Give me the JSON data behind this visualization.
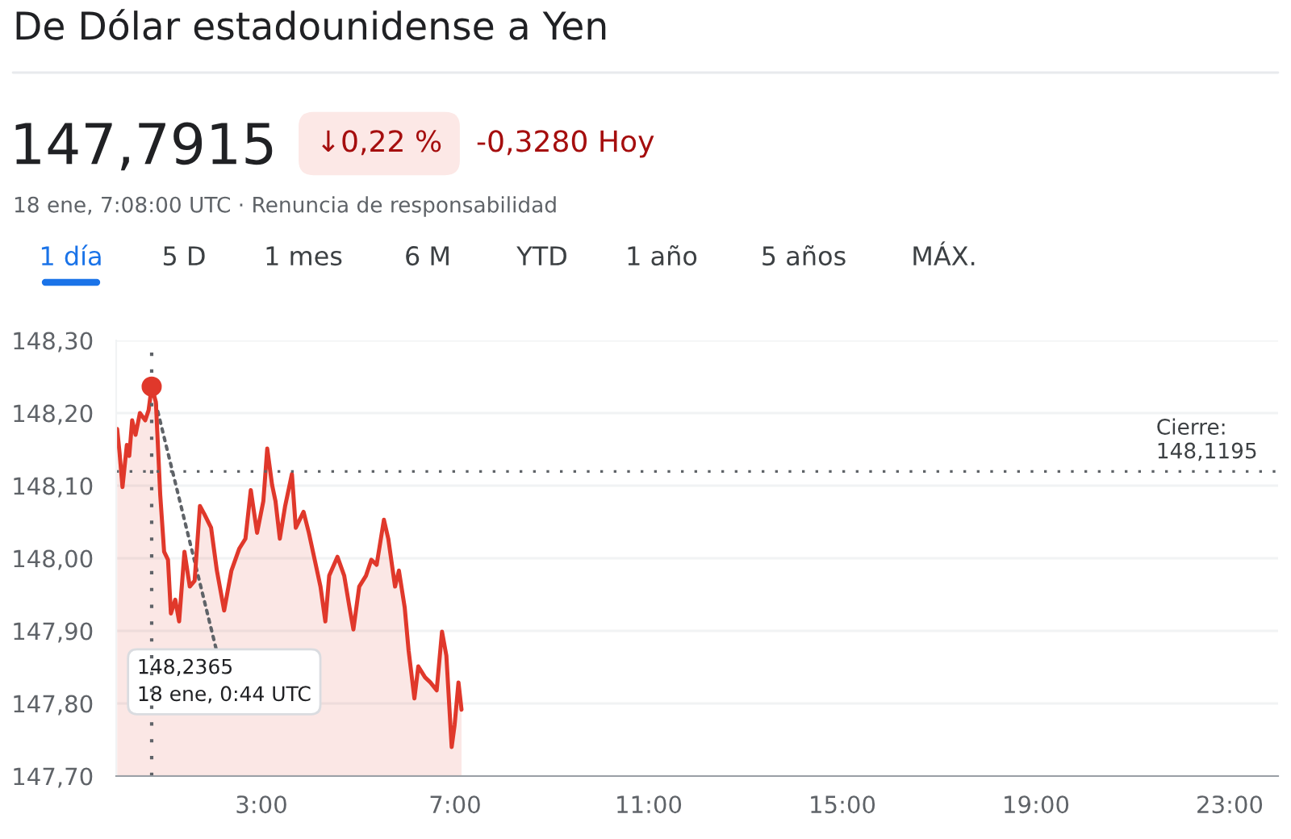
{
  "chart_data": {
    "type": "area",
    "title": "De Dólar estadounidense a Yen",
    "annotations": [
      "147,7915",
      "↓0,22 %",
      "-0,3280 Hoy",
      "18 ene, 7:08:00 UTC · Renuncia de responsabilidad",
      "1 día",
      "5 D",
      "1 mes",
      "6 M",
      "YTD",
      "1 año",
      "5 años",
      "MÁX.",
      {
        "text": "148,2365\n18 ene, 0:44 UTC",
        "x": 0.733,
        "y": 148.2365
      }
    ],
    "series": [
      {
        "color": "#e0382b",
        "x": [
          0.02,
          0.07,
          0.13,
          0.22,
          0.27,
          0.33,
          0.4,
          0.49,
          0.6,
          0.67,
          0.733,
          0.82,
          0.91,
          0.99,
          1.07,
          1.13,
          1.22,
          1.3,
          1.41,
          1.52,
          1.62,
          1.73,
          1.82,
          1.96,
          2.08,
          2.23,
          2.38,
          2.54,
          2.67,
          2.78,
          2.91,
          3.04,
          3.12,
          3.22,
          3.29,
          3.38,
          3.49,
          3.63,
          3.71,
          3.87,
          3.98,
          4.1,
          4.22,
          4.32,
          4.4,
          4.57,
          4.71,
          4.82,
          4.9,
          5.02,
          5.16,
          5.27,
          5.38,
          5.53,
          5.62,
          5.76,
          5.84,
          5.96,
          6.04,
          6.16,
          6.24,
          6.38,
          6.49,
          6.62,
          6.73,
          6.82,
          6.93,
          6.99,
          7.07,
          7.133
        ],
        "values": [
          148.178,
          148.145,
          148.098,
          148.156,
          148.141,
          148.19,
          148.17,
          148.2,
          148.19,
          148.204,
          148.2365,
          148.215,
          148.087,
          148.009,
          147.998,
          147.924,
          147.943,
          147.913,
          148.009,
          147.961,
          147.969,
          148.072,
          148.061,
          148.042,
          147.983,
          147.928,
          147.983,
          148.013,
          148.027,
          148.094,
          148.035,
          148.079,
          148.151,
          148.101,
          148.079,
          148.027,
          148.072,
          148.116,
          148.042,
          148.064,
          148.035,
          147.998,
          147.961,
          147.913,
          147.976,
          148.002,
          147.976,
          147.932,
          147.902,
          147.961,
          147.976,
          147.998,
          147.991,
          148.053,
          148.027,
          147.961,
          147.983,
          147.932,
          147.873,
          147.807,
          147.851,
          147.836,
          147.829,
          147.818,
          147.899,
          147.866,
          147.74,
          147.77,
          147.829,
          147.7915
        ]
      }
    ],
    "xlim": [
      0,
      24
    ],
    "xticks": [
      {
        "value": 3,
        "label": "3:00"
      },
      {
        "value": 7,
        "label": "7:00"
      },
      {
        "value": 11,
        "label": "11:00"
      },
      {
        "value": 15,
        "label": "15:00"
      },
      {
        "value": 19,
        "label": "19:00"
      },
      {
        "value": 23,
        "label": "23:00"
      }
    ],
    "ylim": [
      147.7,
      148.3
    ],
    "yticks": [
      {
        "value": 147.7,
        "label": "147,70"
      },
      {
        "value": 147.8,
        "label": "147,80"
      },
      {
        "value": 147.9,
        "label": "147,90"
      },
      {
        "value": 148.0,
        "label": "148,00"
      },
      {
        "value": 148.1,
        "label": "148,10"
      },
      {
        "value": 148.2,
        "label": "148,20"
      },
      {
        "value": 148.3,
        "label": "148,30"
      }
    ],
    "ref_lines": [
      {
        "axis": "y",
        "value": 148.1195,
        "label": "Cierre:\n148,1195",
        "line_style": "dotted",
        "color": "#5f6368"
      },
      {
        "axis": "x",
        "value": 0.733,
        "line_style": "dotted",
        "color": "#5f6368"
      }
    ],
    "grid": "y",
    "legend": false
  }
}
